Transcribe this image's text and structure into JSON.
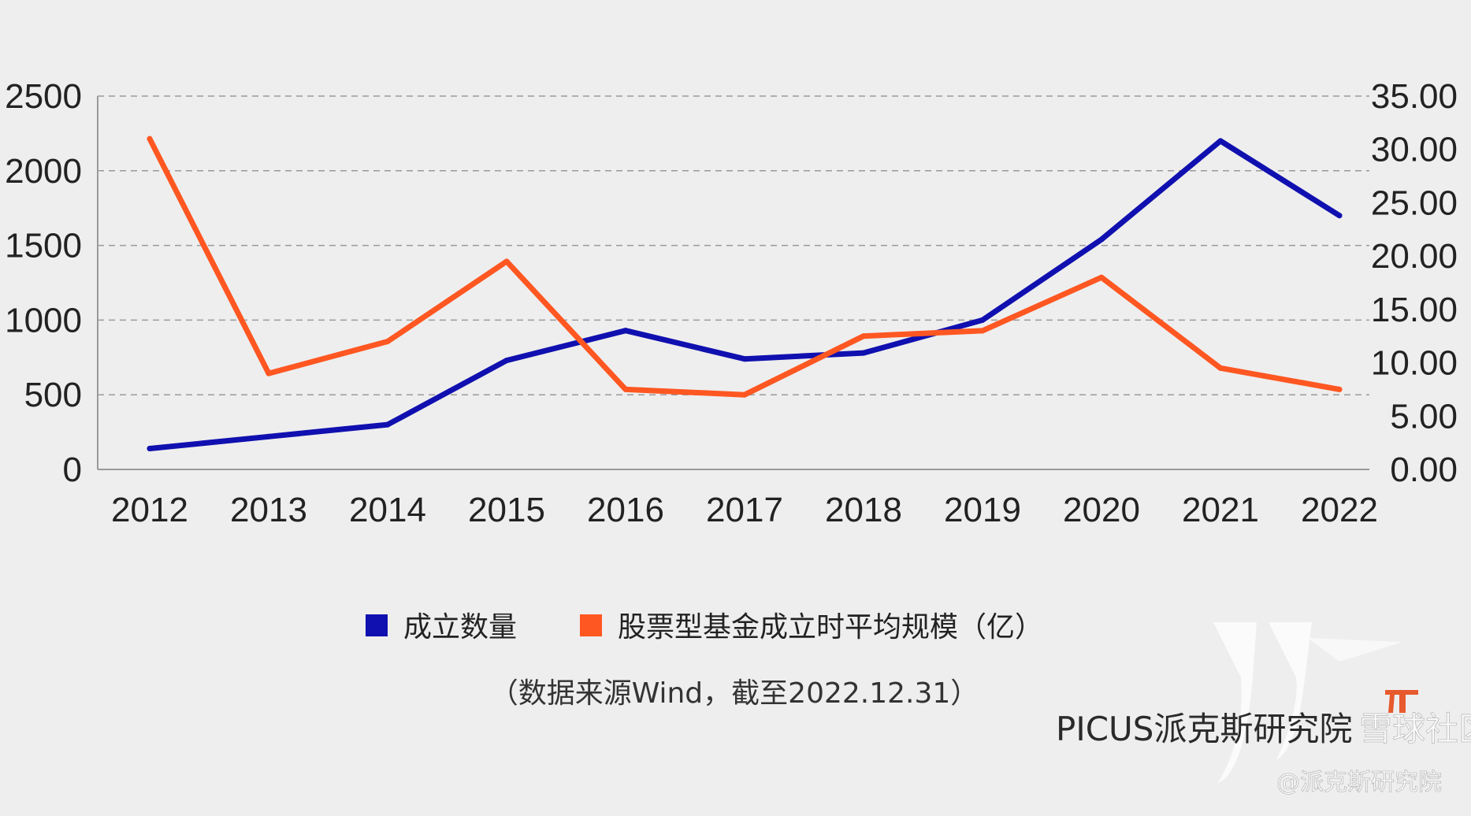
{
  "chart_data": {
    "type": "line",
    "title": "",
    "categories": [
      "2012",
      "2013",
      "2014",
      "2015",
      "2016",
      "2017",
      "2018",
      "2019",
      "2020",
      "2021",
      "2022"
    ],
    "series": [
      {
        "name": "成立数量",
        "axis": "left",
        "color": "#1010b0",
        "values": [
          140,
          220,
          300,
          730,
          930,
          740,
          780,
          1000,
          1540,
          2200,
          1700
        ]
      },
      {
        "name": "股票型基金成立时平均规模（亿）",
        "axis": "right",
        "color": "#ff5722",
        "values": [
          31.0,
          9.0,
          12.0,
          19.5,
          7.5,
          7.0,
          12.5,
          13.0,
          18.0,
          9.5,
          7.5
        ]
      }
    ],
    "y_left": {
      "ylim": [
        0,
        2500
      ],
      "ticks": [
        "0",
        "500",
        "1000",
        "1500",
        "2000",
        "2500"
      ]
    },
    "y_right": {
      "ylim": [
        0,
        35
      ],
      "ticks": [
        "0.00",
        "5.00",
        "10.00",
        "15.00",
        "20.00",
        "25.00",
        "30.00",
        "35.00"
      ]
    },
    "grid": "dashed-horizontal",
    "legend": "bottom-center"
  },
  "source_note": "（数据来源Wind，截至2022.12.31）",
  "watermark": {
    "brand": "PICUS派克斯研究院",
    "community": "雪球社区",
    "handle": "@派克斯研究院"
  },
  "colors": {
    "background": "#eeeeee",
    "accent_red": "#e64a19"
  }
}
